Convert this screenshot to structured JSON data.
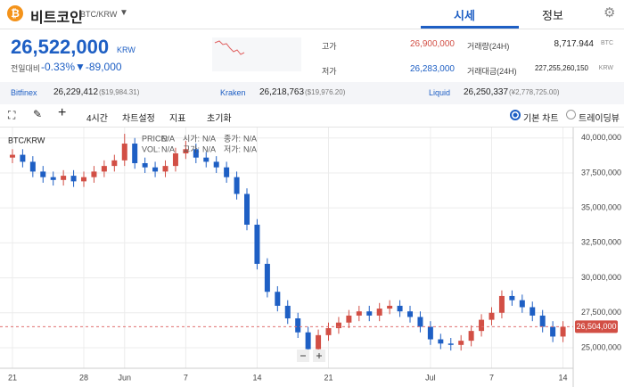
{
  "header": {
    "coin": "비트코인",
    "pair": "BTC/KRW",
    "tabs": [
      "시세",
      "정보"
    ]
  },
  "price": {
    "value": "26,522,000",
    "unit": "KRW",
    "change_label": "전일대비",
    "change_pct": "-0.33%",
    "change": "▼-89,000"
  },
  "stats": [
    [
      "고가",
      "26,900,000",
      "거래량(24H)",
      "8,717.944",
      "BTC"
    ],
    [
      "저가",
      "26,283,000",
      "거래대금(24H)",
      "227,255,260,150",
      "KRW"
    ]
  ],
  "exchanges": [
    [
      "Bitfinex",
      "26,229,412",
      "($19,984.31)"
    ],
    [
      "Kraken",
      "26,218,763",
      "($19,976.20)"
    ],
    [
      "Liquid",
      "26,250,337",
      "(¥2,778,725.00)"
    ]
  ],
  "toolbar": {
    "interval": "4시간",
    "settings": "차트설정",
    "indicators": "지표",
    "reset": "초기화",
    "basic": "기본 차트",
    "tradingview": "트레이딩뷰"
  },
  "chart_data": {
    "type": "candlestick",
    "title": "BTC/KRW",
    "overlay": [
      [
        "PRICE:",
        "N/A"
      ],
      [
        "시가:",
        "N/A"
      ],
      [
        "종가:",
        "N/A"
      ],
      [
        "VOL:",
        "N/A"
      ],
      [
        "고가:",
        "N/A"
      ],
      [
        "저가:",
        "N/A"
      ]
    ],
    "up_color": "#d24f45",
    "down_color": "#1e5fc4",
    "x": [
      0,
      1,
      2,
      3,
      4,
      5,
      6,
      7,
      8,
      9,
      10,
      11,
      12,
      13,
      14,
      15,
      16,
      17,
      18,
      19,
      20,
      21,
      22,
      23,
      24,
      25,
      26,
      27,
      28,
      29,
      30,
      31,
      32,
      33,
      34,
      35,
      36,
      37,
      38,
      39,
      40,
      41,
      42,
      43,
      44,
      45,
      46,
      47,
      48,
      49,
      50,
      51,
      52,
      53,
      54
    ],
    "open": [
      38600000,
      38800000,
      38300000,
      37600000,
      37200000,
      37000000,
      37300000,
      36900000,
      37200000,
      37600000,
      38000000,
      38400000,
      39600000,
      38200000,
      37900000,
      37600000,
      38000000,
      38900000,
      39200000,
      38600000,
      38300000,
      37900000,
      37200000,
      36000000,
      33800000,
      31000000,
      29000000,
      28000000,
      27100000,
      26100000,
      24900000,
      25900000,
      26400000,
      26800000,
      27300000,
      27600000,
      27300000,
      27800000,
      28000000,
      27600000,
      27200000,
      26500000,
      25600000,
      25300000,
      25200000,
      25500000,
      26200000,
      27000000,
      27500000,
      28700000,
      28400000,
      27900000,
      27300000,
      26500000,
      25800000
    ],
    "high": [
      39200000,
      39200000,
      38700000,
      38000000,
      37600000,
      37700000,
      37700000,
      37600000,
      38000000,
      38400000,
      38800000,
      40300000,
      40000000,
      38600000,
      38300000,
      38400000,
      39300000,
      39800000,
      39600000,
      39000000,
      38700000,
      38300000,
      37600000,
      36400000,
      34200000,
      31400000,
      29400000,
      28400000,
      27500000,
      26500000,
      26300000,
      26800000,
      27200000,
      27700000,
      28000000,
      28000000,
      28200000,
      28400000,
      28400000,
      28000000,
      27600000,
      26900000,
      26000000,
      25700000,
      25900000,
      26600000,
      27400000,
      27900000,
      29100000,
      29100000,
      28800000,
      28300000,
      27700000,
      26900000,
      26900000
    ],
    "low": [
      38200000,
      37900000,
      37200000,
      36800000,
      36600000,
      36600000,
      36500000,
      36500000,
      36800000,
      37200000,
      37600000,
      38000000,
      37800000,
      37500000,
      37200000,
      37200000,
      37600000,
      38500000,
      38200000,
      37900000,
      37500000,
      36800000,
      35600000,
      33400000,
      30600000,
      28600000,
      27600000,
      26700000,
      25700000,
      24300000,
      24500000,
      25500000,
      26000000,
      26400000,
      26900000,
      26900000,
      26900000,
      27400000,
      27200000,
      26800000,
      26100000,
      25200000,
      24900000,
      24800000,
      24800000,
      25100000,
      25800000,
      26600000,
      27100000,
      28000000,
      27500000,
      26900000,
      26100000,
      25400000,
      25400000
    ],
    "close": [
      38800000,
      38300000,
      37600000,
      37200000,
      37000000,
      37300000,
      36900000,
      37200000,
      37600000,
      38000000,
      38400000,
      39600000,
      38200000,
      37900000,
      37600000,
      38000000,
      38900000,
      39200000,
      38600000,
      38300000,
      37900000,
      37200000,
      36000000,
      33800000,
      31000000,
      29000000,
      28000000,
      27100000,
      26100000,
      24900000,
      25900000,
      26400000,
      26800000,
      27300000,
      27600000,
      27300000,
      27800000,
      28000000,
      27600000,
      27200000,
      26500000,
      25600000,
      25300000,
      25200000,
      25500000,
      26200000,
      27000000,
      27500000,
      28700000,
      28400000,
      27900000,
      27300000,
      26500000,
      25800000,
      26500000
    ],
    "last_price": {
      "value": 26504000,
      "label": "26,504,000"
    },
    "xlim": [
      -1.22,
      55
    ],
    "xticks": [
      {
        "value": 0,
        "label": "21"
      },
      {
        "value": 7,
        "label": "28"
      },
      {
        "value": 11,
        "label": "Jun"
      },
      {
        "value": 17,
        "label": "7"
      },
      {
        "value": 24,
        "label": "14"
      },
      {
        "value": 31,
        "label": "21"
      },
      {
        "value": 41,
        "label": "Jul"
      },
      {
        "value": 47,
        "label": "7"
      },
      {
        "value": 54,
        "label": "14"
      }
    ],
    "ylim": [
      23850000,
      40750000
    ],
    "yticks": [
      {
        "value": 25000000,
        "label": "25,000,000"
      },
      {
        "value": 27500000,
        "label": "27,500,000"
      },
      {
        "value": 30000000,
        "label": "30,000,000"
      },
      {
        "value": 32500000,
        "label": "32,500,000"
      },
      {
        "value": 35000000,
        "label": "35,000,000"
      },
      {
        "value": 37500000,
        "label": "37,500,000"
      },
      {
        "value": 40000000,
        "label": "40,000,000"
      }
    ],
    "grid": true
  }
}
